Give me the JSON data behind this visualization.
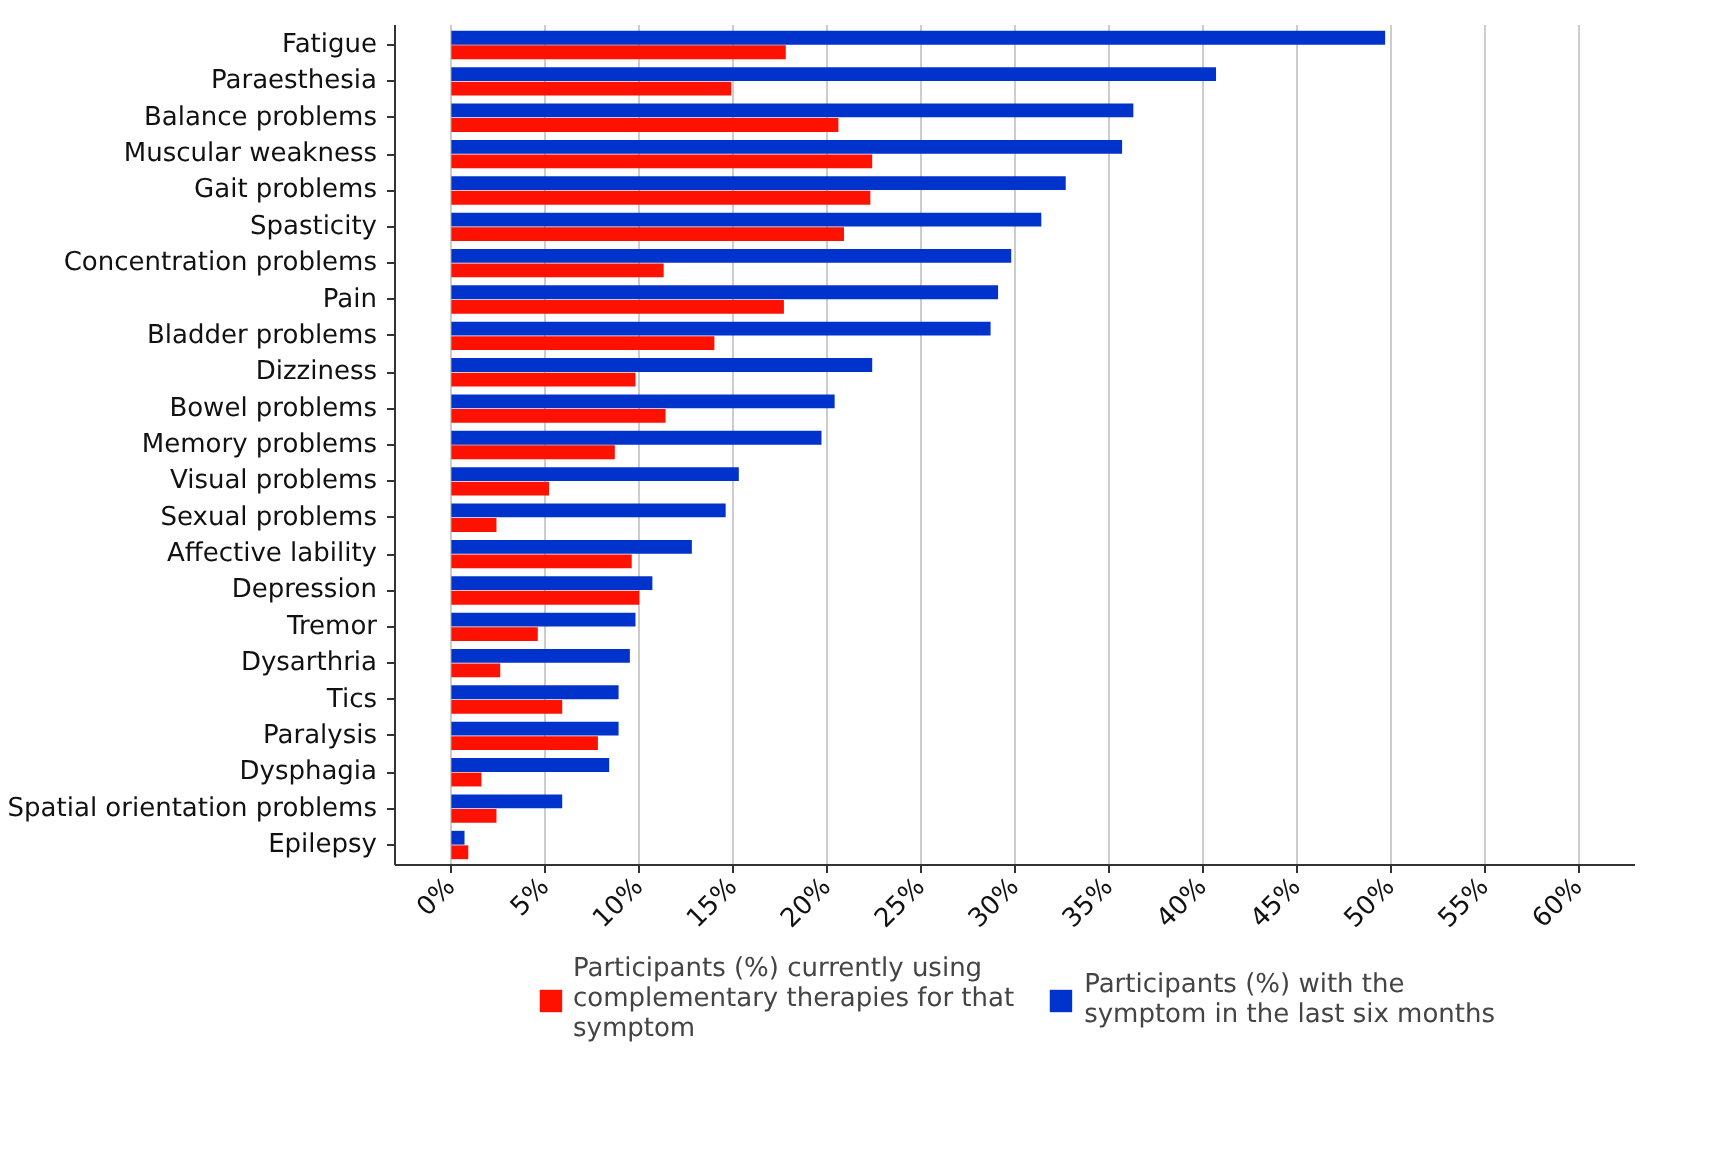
{
  "chart_data": {
    "type": "bar",
    "orientation": "horizontal",
    "categories": [
      "Fatigue",
      "Paraesthesia",
      "Balance problems",
      "Muscular weakness",
      "Gait problems",
      "Spasticity",
      "Concentration problems",
      "Pain",
      "Bladder problems",
      "Dizziness",
      "Bowel problems",
      "Memory problems",
      "Visual problems",
      "Sexual problems",
      "Affective lability",
      "Depression",
      "Tremor",
      "Dysarthria",
      "Tics",
      "Paralysis",
      "Dysphagia",
      "Spatial orientation problems",
      "Epilepsy"
    ],
    "series": [
      {
        "name": "Participants (%) currently using complementary therapies for that symptom",
        "color": "#ff1100",
        "values": [
          17.8,
          14.9,
          20.6,
          22.4,
          22.3,
          20.9,
          11.3,
          17.7,
          14.0,
          9.8,
          11.4,
          8.7,
          5.2,
          2.4,
          9.6,
          10.0,
          4.6,
          2.6,
          5.9,
          7.8,
          1.6,
          2.4,
          0.9
        ]
      },
      {
        "name": "Participants (%) with the symptom in the last six months",
        "color": "#0033cc",
        "values": [
          49.7,
          40.7,
          36.3,
          35.7,
          32.7,
          31.4,
          29.8,
          29.1,
          28.7,
          22.4,
          20.4,
          19.7,
          15.3,
          14.6,
          12.8,
          10.7,
          9.8,
          9.5,
          8.9,
          8.9,
          8.4,
          5.9,
          0.7
        ]
      }
    ],
    "xlim": [
      -3,
      63
    ],
    "xticks": [
      {
        "value": 0,
        "label": "0%"
      },
      {
        "value": 5,
        "label": "5%"
      },
      {
        "value": 10,
        "label": "10%"
      },
      {
        "value": 15,
        "label": "15%"
      },
      {
        "value": 20,
        "label": "20%"
      },
      {
        "value": 25,
        "label": "25%"
      },
      {
        "value": 30,
        "label": "30%"
      },
      {
        "value": 35,
        "label": "35%"
      },
      {
        "value": 40,
        "label": "40%"
      },
      {
        "value": 45,
        "label": "45%"
      },
      {
        "value": 50,
        "label": "50%"
      },
      {
        "value": 55,
        "label": "55%"
      },
      {
        "value": 60,
        "label": "60%"
      }
    ],
    "grid": "x",
    "legend": "bottom"
  }
}
